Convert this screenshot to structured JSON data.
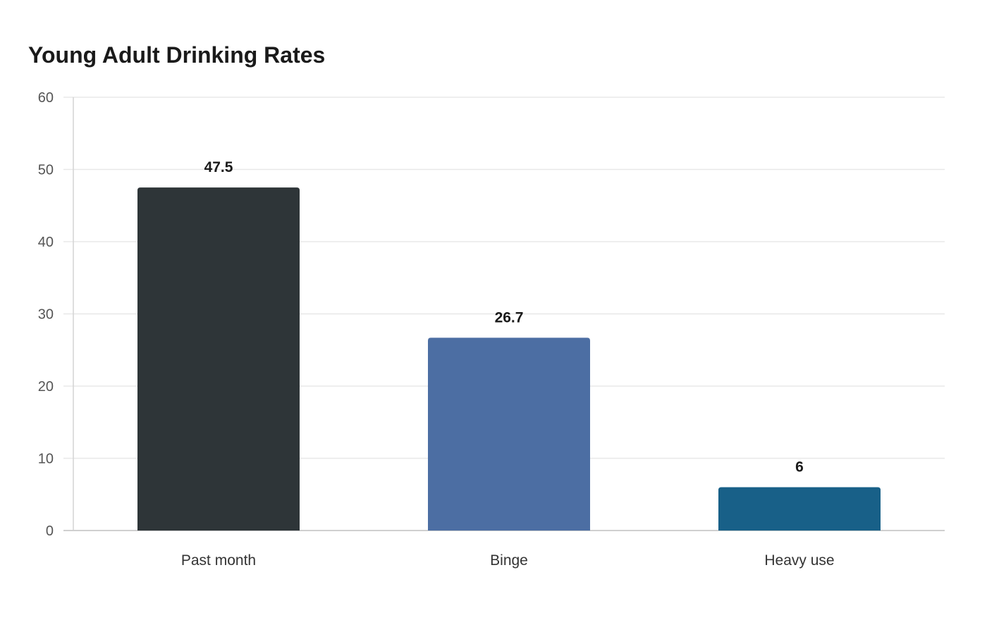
{
  "chart_data": {
    "type": "bar",
    "title": "Young Adult Drinking Rates",
    "xlabel": "",
    "ylabel": "",
    "categories": [
      "Past month",
      "Binge",
      "Heavy use"
    ],
    "values": [
      47.5,
      26.7,
      6
    ],
    "value_labels": [
      "47.5",
      "26.7",
      "6"
    ],
    "colors": [
      "#2e3538",
      "#4c6ea3",
      "#186088"
    ],
    "ylim": [
      0,
      60
    ],
    "yticks": [
      0,
      10,
      20,
      30,
      40,
      50,
      60
    ],
    "grid": true,
    "legend": "none"
  }
}
